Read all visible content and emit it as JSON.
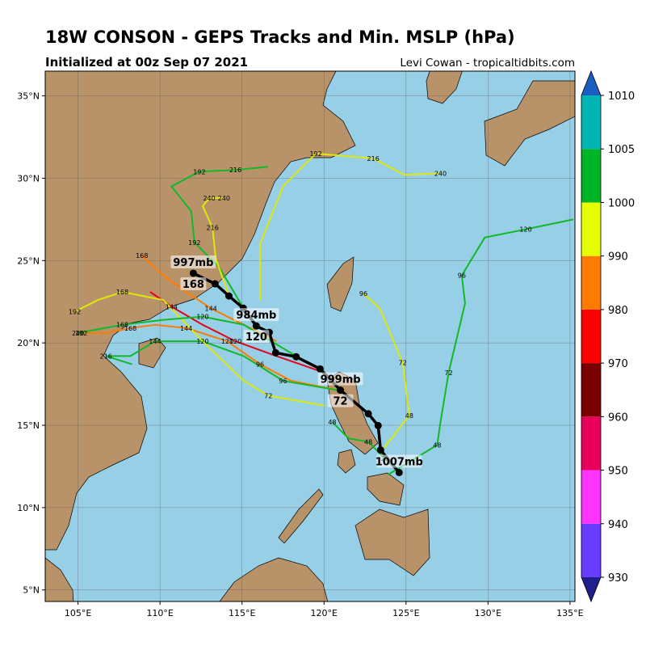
{
  "chart_data": {
    "type": "map",
    "title": "18W CONSON - GEPS Tracks and Min. MSLP (hPa)",
    "subtitle": "Initialized at 00z Sep 07 2021",
    "credit": "Levi Cowan - tropicaltidbits.com",
    "xlim": [
      103,
      135.3
    ],
    "ylim": [
      4.3,
      36.5
    ],
    "xticks": [
      {
        "value": 105,
        "label": "105°E"
      },
      {
        "value": 110,
        "label": "110°E"
      },
      {
        "value": 115,
        "label": "115°E"
      },
      {
        "value": 120,
        "label": "120°E"
      },
      {
        "value": 125,
        "label": "125°E"
      },
      {
        "value": 130,
        "label": "130°E"
      },
      {
        "value": 135,
        "label": "135°E"
      }
    ],
    "yticks": [
      {
        "value": 5,
        "label": "5°N"
      },
      {
        "value": 10,
        "label": "10°N"
      },
      {
        "value": 15,
        "label": "15°N"
      },
      {
        "value": 20,
        "label": "20°N"
      },
      {
        "value": 25,
        "label": "25°N"
      },
      {
        "value": 30,
        "label": "30°N"
      },
      {
        "value": 35,
        "label": "35°N"
      }
    ],
    "grid": true,
    "ocean_color": "#97cfe6",
    "colorbar": {
      "levels": [
        930,
        940,
        950,
        960,
        970,
        980,
        990,
        1000,
        1005,
        1010
      ],
      "colors": [
        "#6a3cff",
        "#ff33ff",
        "#e8005a",
        "#7a0000",
        "#ff0000",
        "#ff7b00",
        "#e6ff00",
        "#00b428",
        "#00b4b4"
      ],
      "under_color": "#1e1e8c",
      "over_color": "#1a5fc0"
    },
    "ensemble_tracks": [
      {
        "color": "#12b82a",
        "lon": [
          123.9,
          126.9,
          127.1,
          127.6,
          128.6,
          128.4,
          129.8,
          132.3,
          135.2
        ],
        "lat": [
          12.0,
          13.8,
          15.2,
          18.2,
          22.4,
          24.1,
          26.4,
          26.9,
          27.5
        ],
        "hours": [
          null,
          "48",
          null,
          "72",
          null,
          "96",
          null,
          "120",
          null
        ]
      },
      {
        "color": "#dde80a",
        "lon": [
          123.4,
          125.2,
          124.8,
          123.4,
          122.4
        ],
        "lat": [
          13.3,
          15.6,
          18.8,
          22.1,
          23.0
        ],
        "hours": [
          null,
          "48",
          "72",
          null,
          "96"
        ]
      },
      {
        "color": "#dde80a",
        "lon": [
          116.1,
          116.1,
          117.5,
          119.5,
          123.0,
          124.9,
          127.1
        ],
        "lat": [
          22.6,
          26.0,
          29.5,
          31.5,
          31.2,
          30.2,
          30.3
        ],
        "hours": [
          null,
          null,
          null,
          "192",
          "216",
          null,
          "240"
        ]
      },
      {
        "color": "#12b82a",
        "lon": [
          115.1,
          113.6,
          112.1,
          111.9,
          110.7,
          112.4,
          114.6,
          116.6
        ],
        "lat": [
          22.1,
          24.6,
          26.1,
          28.0,
          29.5,
          30.4,
          30.5,
          30.7
        ],
        "hours": [
          null,
          null,
          "192",
          null,
          null,
          "192",
          "216",
          null
        ]
      },
      {
        "color": "#dde80a",
        "lon": [
          114.2,
          113.4,
          113.2,
          112.6,
          113.0,
          113.9
        ],
        "lat": [
          22.9,
          25.1,
          27.0,
          28.3,
          28.8,
          28.8
        ],
        "hours": [
          null,
          null,
          "216",
          null,
          "240",
          "240"
        ]
      },
      {
        "color": "#ff7b00",
        "lon": [
          121.0,
          118.0,
          116.1,
          114.1,
          111.6,
          109.7,
          108.2,
          106.7,
          105.2
        ],
        "lat": [
          17.1,
          17.7,
          18.7,
          20.1,
          20.9,
          21.1,
          20.9,
          20.6,
          20.6
        ],
        "hours": [
          null,
          null,
          "96",
          "120",
          "144",
          null,
          "168",
          null,
          "192"
        ]
      },
      {
        "color": "#e8001c",
        "lon": [
          120.0,
          117.1,
          114.6,
          112.6,
          110.7,
          109.4
        ],
        "lat": [
          18.2,
          19.2,
          20.1,
          21.1,
          22.2,
          23.1
        ],
        "hours": [
          null,
          null,
          "120",
          null,
          "144",
          null
        ]
      },
      {
        "color": "#12b82a",
        "lon": [
          121.0,
          117.5,
          115.1,
          112.6,
          109.7,
          108.2,
          106.7,
          108.3
        ],
        "lat": [
          17.1,
          17.7,
          19.2,
          20.1,
          20.1,
          19.2,
          19.2,
          18.7
        ],
        "hours": [
          null,
          "96",
          null,
          "120",
          "144",
          null,
          "216",
          null
        ]
      },
      {
        "color": "#dde80a",
        "lon": [
          120.0,
          116.6,
          115.1,
          112.6,
          110.2,
          107.7,
          106.2,
          104.8
        ],
        "lat": [
          16.2,
          16.8,
          17.7,
          20.1,
          22.6,
          23.1,
          22.6,
          21.9
        ],
        "hours": [
          null,
          "72",
          null,
          null,
          null,
          "168",
          null,
          "192"
        ]
      },
      {
        "color": "#ff7b00",
        "lon": [
          117.1,
          115.1,
          113.1,
          111.6,
          110.2,
          108.9
        ],
        "lat": [
          20.1,
          21.1,
          22.1,
          23.1,
          24.1,
          25.3
        ],
        "hours": [
          null,
          null,
          "144",
          null,
          null,
          "168"
        ]
      },
      {
        "color": "#12b82a",
        "lon": [
          118.3,
          115.1,
          112.6,
          110.2,
          107.7,
          105.0
        ],
        "lat": [
          19.2,
          21.1,
          21.6,
          21.4,
          21.1,
          20.6
        ],
        "hours": [
          null,
          null,
          "120",
          null,
          "168",
          "240"
        ]
      },
      {
        "color": "#12b82a",
        "lon": [
          124.6,
          123.7,
          122.7,
          121.5,
          120.5
        ],
        "lat": [
          12.1,
          13.0,
          14.0,
          14.2,
          15.2
        ],
        "hours": [
          null,
          "24",
          "48",
          null,
          "48"
        ]
      }
    ],
    "mean_track": {
      "color": "#000000",
      "lon": [
        124.58,
        123.45,
        123.3,
        122.7,
        121.0,
        119.76,
        118.3,
        117.05,
        116.66,
        115.87,
        115.08,
        114.2,
        113.36,
        112.03
      ],
      "lat": [
        12.13,
        13.5,
        14.98,
        15.7,
        17.13,
        18.42,
        19.16,
        19.4,
        20.64,
        21.03,
        22.11,
        22.85,
        23.59,
        24.23
      ],
      "pressure_labels": [
        "1007mb",
        null,
        null,
        null,
        "999mb",
        null,
        null,
        null,
        null,
        "984mb",
        null,
        null,
        null,
        "997mb"
      ],
      "hour_labels": [
        null,
        null,
        null,
        null,
        "72",
        null,
        null,
        null,
        null,
        "120",
        null,
        null,
        null,
        "168"
      ]
    }
  }
}
